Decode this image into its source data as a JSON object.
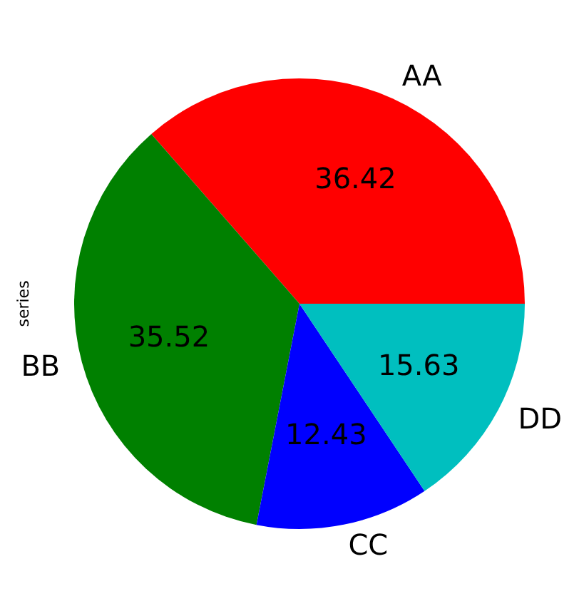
{
  "chart_data": {
    "type": "pie",
    "ylabel": "series",
    "categories": [
      "AA",
      "BB",
      "CC",
      "DD"
    ],
    "values": [
      36.42,
      35.52,
      12.43,
      15.63
    ],
    "colors": [
      "#ff0000",
      "#008000",
      "#0000ff",
      "#00bfbf"
    ],
    "data_labels": true
  }
}
